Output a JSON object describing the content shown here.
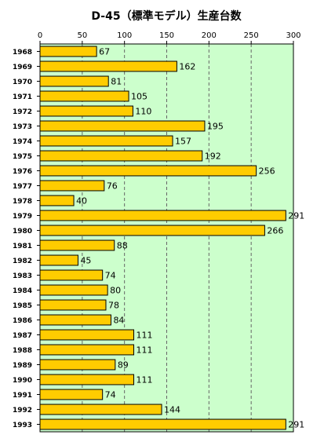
{
  "chart_data": {
    "type": "bar",
    "orientation": "horizontal",
    "title": "D-45（標準モデル）生産台数",
    "xlabel": "",
    "ylabel": "",
    "xlim": [
      0,
      300
    ],
    "x_ticks": [
      "0",
      "50",
      "100",
      "150",
      "200",
      "250",
      "300"
    ],
    "grid": "vertical dashed",
    "legend": "none",
    "colors": {
      "plot_background": "#ccffcc",
      "bar_fill": "#ffcc00",
      "bar_stroke": "#000000",
      "grid": "#666666"
    },
    "categories": [
      "1968",
      "1969",
      "1970",
      "1971",
      "1972",
      "1973",
      "1974",
      "1975",
      "1976",
      "1977",
      "1978",
      "1979",
      "1980",
      "1981",
      "1982",
      "1983",
      "1984",
      "1985",
      "1986",
      "1987",
      "1988",
      "1989",
      "1990",
      "1991",
      "1992",
      "1993"
    ],
    "values": [
      67,
      162,
      81,
      105,
      110,
      195,
      157,
      192,
      256,
      76,
      40,
      291,
      266,
      88,
      45,
      74,
      80,
      78,
      84,
      111,
      111,
      89,
      111,
      74,
      144,
      291
    ]
  }
}
